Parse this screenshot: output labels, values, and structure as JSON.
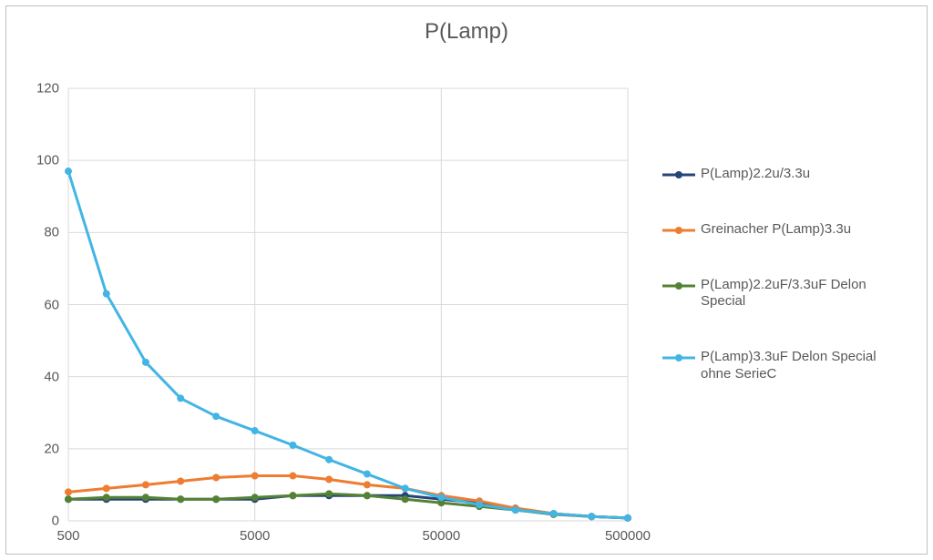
{
  "chart": {
    "type": "line",
    "title": "P(Lamp)",
    "title_fontsize": 24,
    "title_color": "#595959",
    "background_color": "#ffffff",
    "plot_background_color": "#ffffff",
    "border_color": "#bfbfbf",
    "axis_line_color": "#d9d9d9",
    "grid_color": "#d9d9d9",
    "tick_label_color": "#595959",
    "tick_label_fontsize": 15,
    "x_axis": {
      "scale": "log",
      "min": 500,
      "max": 500000,
      "ticks": [
        500,
        5000,
        50000,
        500000
      ],
      "tick_labels": [
        "500",
        "5000",
        "50000",
        "500000"
      ]
    },
    "y_axis": {
      "scale": "linear",
      "min": 0,
      "max": 120,
      "tick_step": 20,
      "ticks": [
        0,
        20,
        40,
        60,
        80,
        100,
        120
      ],
      "tick_labels": [
        "0",
        "20",
        "40",
        "60",
        "80",
        "100",
        "120"
      ]
    },
    "x_values": [
      500,
      800,
      1300,
      2000,
      3100,
      5000,
      8000,
      12500,
      20000,
      32000,
      50000,
      80000,
      125000,
      200000,
      320000,
      500000
    ],
    "series": [
      {
        "name": "P(Lamp)2.2u/3.3u",
        "color": "#264478",
        "line_width": 3,
        "marker": "circle",
        "marker_size": 8,
        "y": [
          6,
          6,
          6,
          6,
          6,
          6,
          7,
          7,
          7,
          7,
          6,
          5,
          3.5,
          2,
          1.2,
          0.8
        ]
      },
      {
        "name": "Greinacher P(Lamp)3.3u",
        "color": "#ed7d31",
        "line_width": 3,
        "marker": "circle",
        "marker_size": 8,
        "y": [
          8,
          9,
          10,
          11,
          12,
          12.5,
          12.5,
          11.5,
          10,
          9,
          7,
          5.5,
          3.5,
          2,
          1.2,
          0.8
        ]
      },
      {
        "name": "P(Lamp)2.2uF/3.3uF Delon Special",
        "color": "#548235",
        "line_width": 3,
        "marker": "circle",
        "marker_size": 8,
        "y": [
          6,
          6.5,
          6.5,
          6,
          6,
          6.5,
          7,
          7.5,
          7,
          6,
          5,
          4,
          3,
          1.8,
          1.2,
          0.8
        ]
      },
      {
        "name": "P(Lamp)3.3uF Delon Special ohne SerieC",
        "color": "#43b5e4",
        "line_width": 3,
        "marker": "circle",
        "marker_size": 8,
        "y": [
          97,
          63,
          44,
          34,
          29,
          25,
          21,
          17,
          13,
          9,
          6.5,
          4.5,
          3,
          2,
          1.2,
          0.8
        ]
      }
    ],
    "legend": {
      "position": "right",
      "fontsize": 15,
      "text_color": "#595959"
    }
  }
}
